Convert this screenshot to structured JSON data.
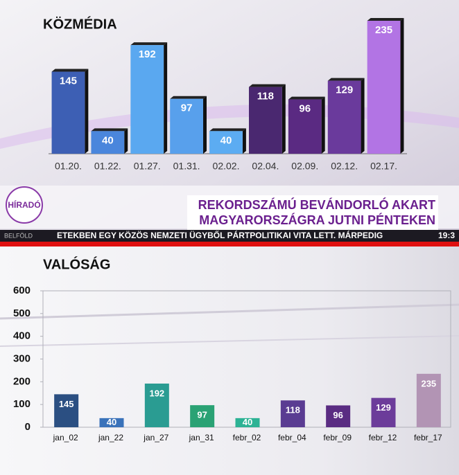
{
  "chart_data": [
    {
      "type": "bar",
      "title": "KÖZMÉDIA",
      "categories": [
        "01.20.",
        "01.22.",
        "01.27.",
        "01.31.",
        "02.02.",
        "02.04.",
        "02.09.",
        "02.12.",
        "02.17."
      ],
      "values": [
        145,
        40,
        192,
        97,
        40,
        118,
        96,
        129,
        235
      ],
      "colors": [
        "#3d5fb4",
        "#4a86dc",
        "#5aa8f0",
        "#58a0ec",
        "#5cacf2",
        "#4a2870",
        "#5a2a82",
        "#6a3a9c",
        "#b274e4"
      ]
    },
    {
      "type": "bar",
      "title": "VALÓSÁG",
      "categories": [
        "jan_02",
        "jan_22",
        "jan_27",
        "jan_31",
        "febr_02",
        "febr_04",
        "febr_09",
        "febr_12",
        "febr_17"
      ],
      "values": [
        145,
        40,
        192,
        97,
        40,
        118,
        96,
        129,
        235
      ],
      "colors": [
        "#2b4f82",
        "#3a72ba",
        "#2a9c92",
        "#2aa274",
        "#2cb294",
        "#5a3c92",
        "#5a2c82",
        "#6c3c9a",
        "#b294b4"
      ],
      "ylim": [
        0,
        600
      ],
      "yticks": [
        0,
        100,
        200,
        300,
        400,
        500,
        600
      ],
      "grid": false
    }
  ],
  "broadcast": {
    "logo": "HÍRADÓ",
    "headline": [
      "REKORDSZÁMÚ BEVÁNDORLÓ AKART",
      "MAGYARORSZÁGRA JUTNI PÉNTEKEN"
    ],
    "section": "BELFÖLD",
    "ticker": "ETEKBEN EGY KÖZÖS NEMZETI ÜGYBŐL PÁRTPOLITIKAI VITA LETT. MÁRPEDIG",
    "clock": "19:3"
  }
}
